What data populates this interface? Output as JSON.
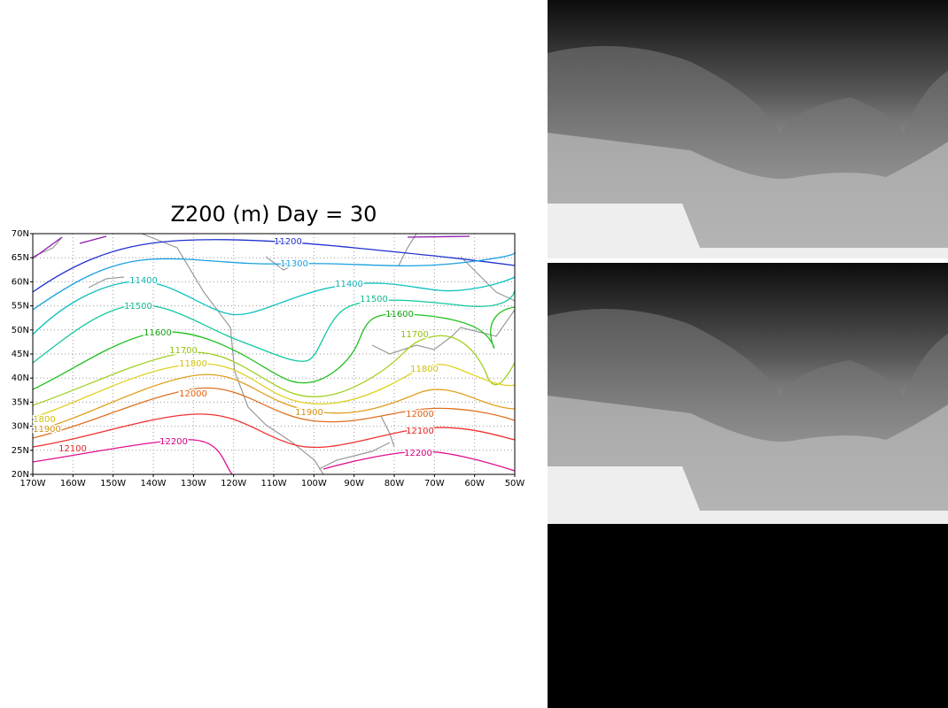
{
  "title": "Z200 (m) Day = 30",
  "y_ticks": [
    "70N",
    "65N",
    "60N",
    "55N",
    "50N",
    "45N",
    "40N",
    "35N",
    "30N",
    "25N",
    "20N"
  ],
  "x_ticks": [
    "170W",
    "160W",
    "150W",
    "140W",
    "130W",
    "120W",
    "110W",
    "100W",
    "90W",
    "80W",
    "70W",
    "60W",
    "50W"
  ],
  "contour_labels": [
    "11200",
    "11300",
    "11400",
    "11400",
    "11500",
    "11500",
    "11600",
    "11600",
    "11700",
    "11700",
    "11800",
    "11800",
    "1800",
    "11900",
    "11900",
    "12000",
    "12000",
    "12100",
    "12100",
    "12200",
    "12200"
  ]
}
